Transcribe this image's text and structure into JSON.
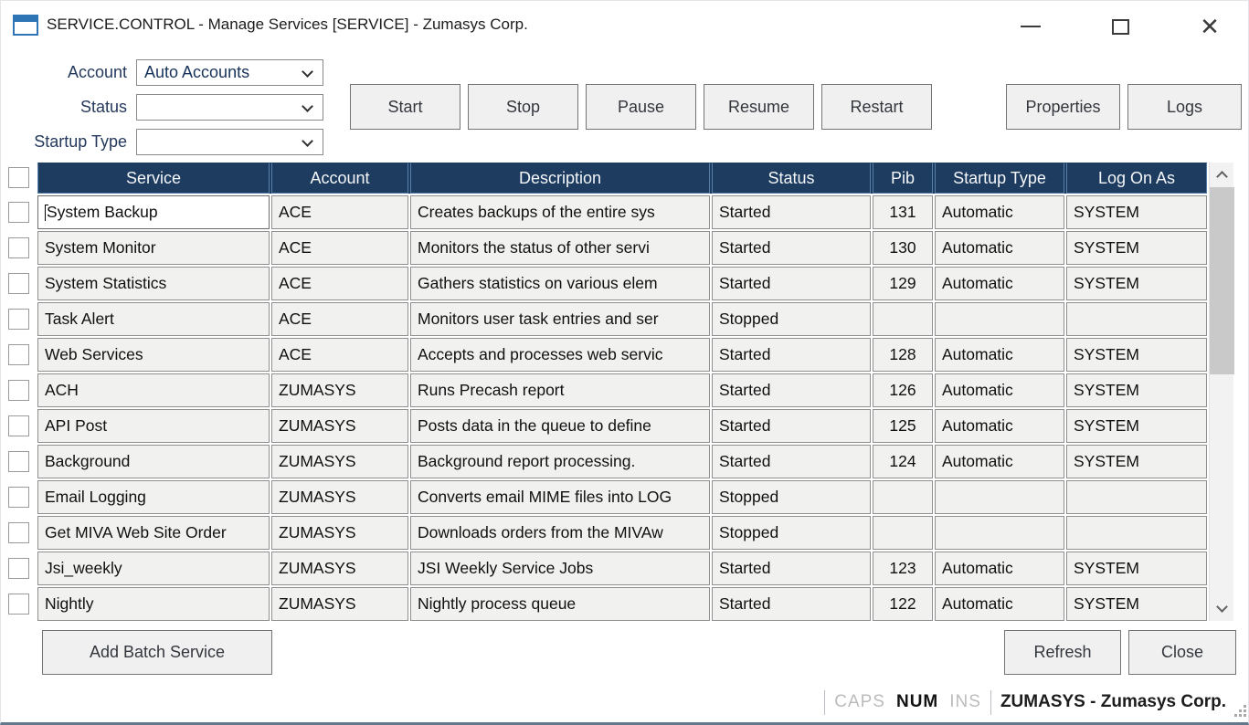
{
  "window": {
    "title": "SERVICE.CONTROL - Manage Services [SERVICE] - Zumasys Corp.",
    "controls": {
      "minimize": "minimize",
      "maximize": "maximize",
      "close": "✕"
    }
  },
  "filters": [
    {
      "label": "Account",
      "value": "Auto Accounts"
    },
    {
      "label": "Status",
      "value": ""
    },
    {
      "label": "Startup Type",
      "value": ""
    }
  ],
  "action_buttons": [
    "Start",
    "Stop",
    "Pause",
    "Resume",
    "Restart"
  ],
  "side_buttons": [
    "Properties",
    "Logs"
  ],
  "table": {
    "columns": [
      "Service",
      "Account",
      "Description",
      "Status",
      "Pib",
      "Startup Type",
      "Log On As"
    ],
    "rows": [
      {
        "service": "System Backup",
        "account": "ACE",
        "description": "Creates backups of the entire sys",
        "status": "Started",
        "pib": "131",
        "startup_type": "Automatic",
        "log_on_as": "SYSTEM",
        "editing": true
      },
      {
        "service": "System Monitor",
        "account": "ACE",
        "description": "Monitors the status of other servi",
        "status": "Started",
        "pib": "130",
        "startup_type": "Automatic",
        "log_on_as": "SYSTEM"
      },
      {
        "service": "System Statistics",
        "account": "ACE",
        "description": "Gathers statistics on various elem",
        "status": "Started",
        "pib": "129",
        "startup_type": "Automatic",
        "log_on_as": "SYSTEM"
      },
      {
        "service": "Task Alert",
        "account": "ACE",
        "description": "Monitors user task entries and ser",
        "status": "Stopped",
        "pib": "",
        "startup_type": "",
        "log_on_as": ""
      },
      {
        "service": "Web Services",
        "account": "ACE",
        "description": "Accepts and processes web servic",
        "status": "Started",
        "pib": "128",
        "startup_type": "Automatic",
        "log_on_as": "SYSTEM"
      },
      {
        "service": "ACH",
        "account": "ZUMASYS",
        "description": "Runs Precash report",
        "status": "Started",
        "pib": "126",
        "startup_type": "Automatic",
        "log_on_as": "SYSTEM"
      },
      {
        "service": "API Post",
        "account": "ZUMASYS",
        "description": "Posts data in the queue to define",
        "status": "Started",
        "pib": "125",
        "startup_type": "Automatic",
        "log_on_as": "SYSTEM"
      },
      {
        "service": "Background",
        "account": "ZUMASYS",
        "description": "Background report processing.",
        "status": "Started",
        "pib": "124",
        "startup_type": "Automatic",
        "log_on_as": "SYSTEM"
      },
      {
        "service": "Email Logging",
        "account": "ZUMASYS",
        "description": "Converts email MIME files into LOG",
        "status": "Stopped",
        "pib": "",
        "startup_type": "",
        "log_on_as": ""
      },
      {
        "service": "Get MIVA Web Site Order",
        "account": "ZUMASYS",
        "description": "Downloads orders from the MIVAw",
        "status": "Stopped",
        "pib": "",
        "startup_type": "",
        "log_on_as": ""
      },
      {
        "service": "Jsi_weekly",
        "account": "ZUMASYS",
        "description": "JSI Weekly Service Jobs",
        "status": "Started",
        "pib": "123",
        "startup_type": "Automatic",
        "log_on_as": "SYSTEM"
      },
      {
        "service": "Nightly",
        "account": "ZUMASYS",
        "description": "Nightly process queue",
        "status": "Started",
        "pib": "122",
        "startup_type": "Automatic",
        "log_on_as": "SYSTEM"
      }
    ]
  },
  "footer": {
    "add_batch_label": "Add Batch Service",
    "refresh_label": "Refresh",
    "close_label": "Close"
  },
  "status_bar": {
    "caps": "CAPS",
    "num": "NUM",
    "ins": "INS",
    "account_text": "ZUMASYS - Zumasys Corp."
  },
  "colors": {
    "header_bg": "#1d3c5f",
    "header_border": "#557ea9",
    "cell_bg": "#f1f1f0",
    "accent_blue": "#2e75b6",
    "window_bottom_border": "#64788c"
  }
}
